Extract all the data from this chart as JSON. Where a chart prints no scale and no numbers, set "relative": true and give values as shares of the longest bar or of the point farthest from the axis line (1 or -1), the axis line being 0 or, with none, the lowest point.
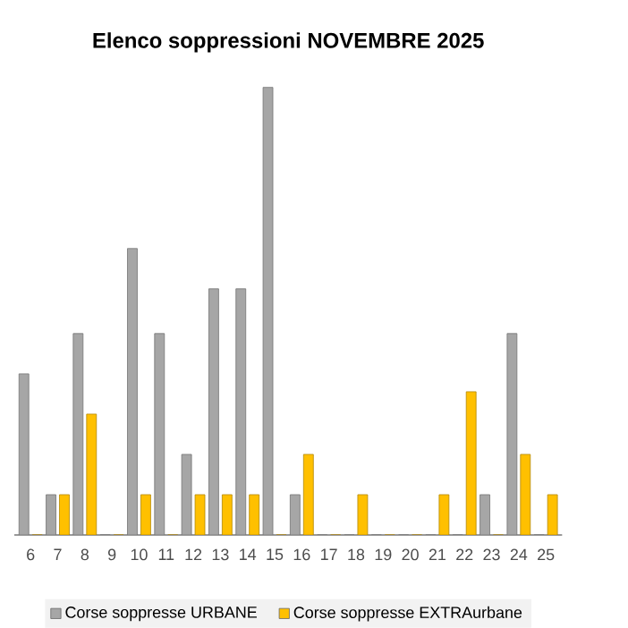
{
  "chart_data": {
    "type": "bar",
    "title": "Elenco soppressioni NOVEMBRE 2025",
    "relative": true,
    "legend": "bottom",
    "categories": [
      "6",
      "7",
      "8",
      "9",
      "10",
      "11",
      "12",
      "13",
      "14",
      "15",
      "16",
      "17",
      "18",
      "19",
      "20",
      "21",
      "22",
      "23",
      "24",
      "25"
    ],
    "series": [
      {
        "name": "Corse soppresse URBANE",
        "color": "#a6a6a6",
        "values": [
          0.36,
          0.09,
          0.45,
          0,
          0.64,
          0.45,
          0.18,
          0.55,
          0.55,
          1,
          0.09,
          0,
          0,
          0,
          0,
          0,
          0,
          0.09,
          0.45,
          0
        ]
      },
      {
        "name": "Corse soppresse EXTRAurbane",
        "color": "#ffc000",
        "values": [
          0,
          0.09,
          0.27,
          0,
          0.09,
          0,
          0.09,
          0.09,
          0.09,
          0,
          0.18,
          0,
          0.09,
          0,
          0,
          0.09,
          0.32,
          0,
          0.18,
          0.09
        ]
      }
    ]
  }
}
